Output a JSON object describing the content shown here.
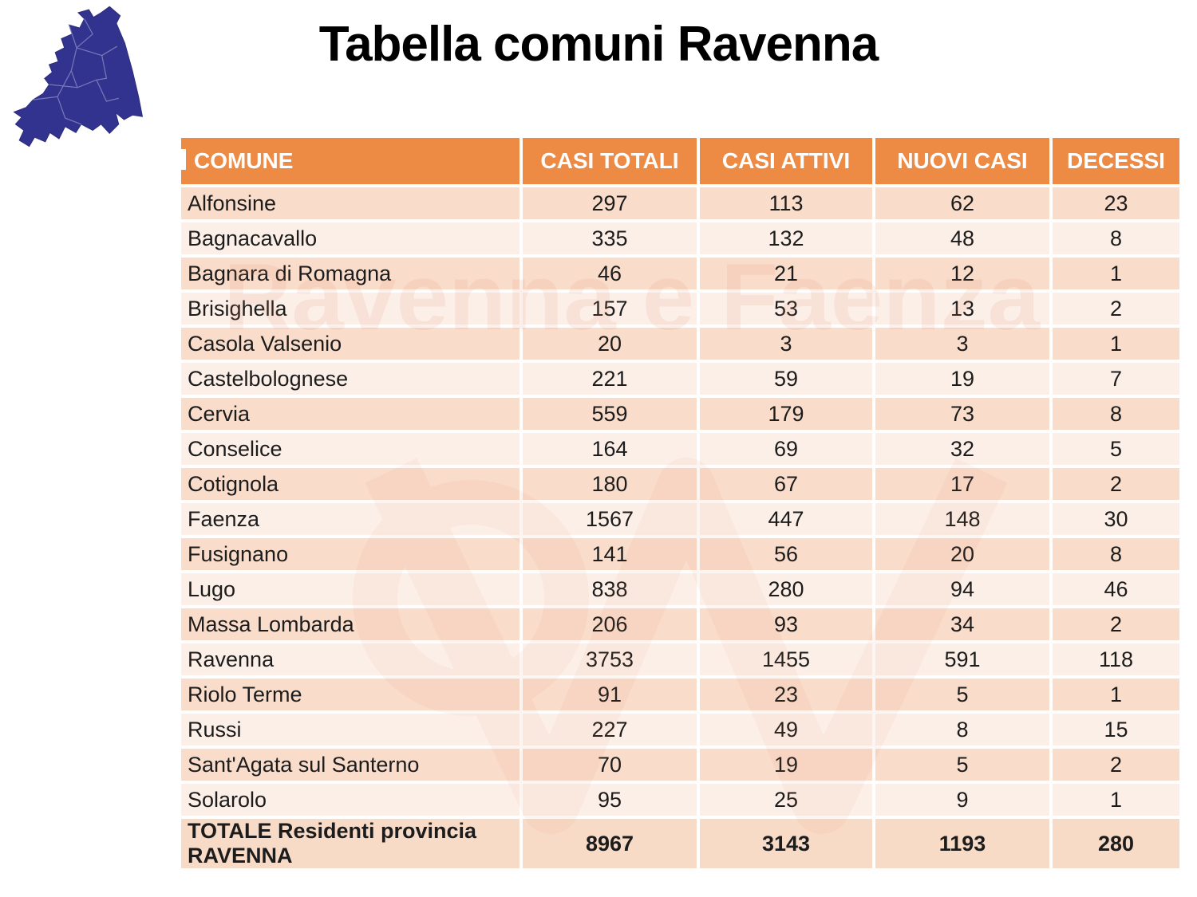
{
  "title": "Tabella comuni Ravenna",
  "watermark": {
    "text": "Ravenna e Faenza"
  },
  "map": {
    "label": "ravenna-province-map",
    "fill": "#32338E",
    "border": "#8b8ecb"
  },
  "colors": {
    "header_bg": "#ED8A44",
    "header_text": "#FFFFFF",
    "row_odd_bg": "#F9DCCA",
    "row_even_bg": "#FCEFE8",
    "total_row_bg": "#F8DBC7",
    "body_text": "#1C1C1C"
  },
  "table": {
    "columns": [
      "COMUNE",
      "CASI TOTALI",
      "CASI ATTIVI",
      "NUOVI CASI",
      "DECESSI"
    ],
    "rows": [
      [
        "Alfonsine",
        297,
        113,
        62,
        23
      ],
      [
        "Bagnacavallo",
        335,
        132,
        48,
        8
      ],
      [
        "Bagnara di Romagna",
        46,
        21,
        12,
        1
      ],
      [
        "Brisighella",
        157,
        53,
        13,
        2
      ],
      [
        "Casola Valsenio",
        20,
        3,
        3,
        1
      ],
      [
        "Castelbolognese",
        221,
        59,
        19,
        7
      ],
      [
        "Cervia",
        559,
        179,
        73,
        8
      ],
      [
        "Conselice",
        164,
        69,
        32,
        5
      ],
      [
        "Cotignola",
        180,
        67,
        17,
        2
      ],
      [
        "Faenza",
        1567,
        447,
        148,
        30
      ],
      [
        "Fusignano",
        141,
        56,
        20,
        8
      ],
      [
        "Lugo",
        838,
        280,
        94,
        46
      ],
      [
        "Massa Lombarda",
        206,
        93,
        34,
        2
      ],
      [
        "Ravenna",
        3753,
        1455,
        591,
        118
      ],
      [
        "Riolo Terme",
        91,
        23,
        5,
        1
      ],
      [
        "Russi",
        227,
        49,
        8,
        15
      ],
      [
        "Sant'Agata sul Santerno",
        70,
        19,
        5,
        2
      ],
      [
        "Solarolo",
        95,
        25,
        9,
        1
      ]
    ],
    "total_row": [
      "TOTALE Residenti provincia RAVENNA",
      8967,
      3143,
      1193,
      280
    ]
  }
}
